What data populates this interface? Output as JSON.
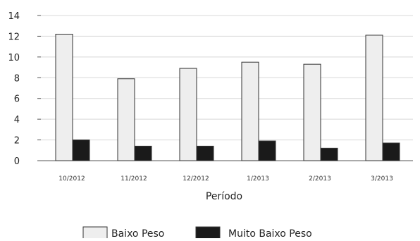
{
  "chart_data": {
    "type": "bar",
    "title": "",
    "xlabel": "Período",
    "ylabel": "",
    "ylim": [
      0,
      14
    ],
    "yticks": [
      0,
      2,
      4,
      6,
      8,
      10,
      12,
      14
    ],
    "grid": true,
    "legend_position": "bottom",
    "categories": [
      "10/2012",
      "11/2012",
      "12/2012",
      "1/2013",
      "2/2013",
      "3/2013"
    ],
    "series": [
      {
        "name": "Baixo Peso",
        "color": "#eeeeee",
        "values": [
          12.2,
          7.9,
          8.9,
          9.5,
          9.3,
          12.1
        ]
      },
      {
        "name": "Muito Baixo Peso",
        "color": "#1a1a1a",
        "values": [
          2.0,
          1.4,
          1.4,
          1.9,
          1.2,
          1.7
        ]
      }
    ]
  }
}
